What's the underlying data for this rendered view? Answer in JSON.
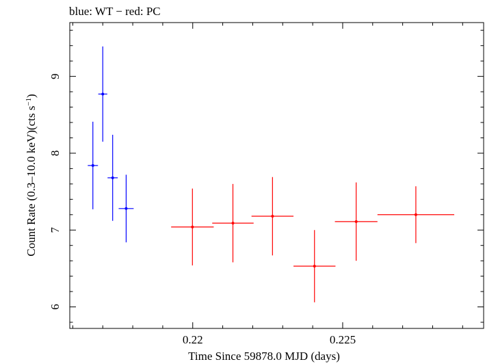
{
  "chart_data": {
    "type": "scatter",
    "title": "blue: WT − red: PC",
    "xlabel": "Time Since 59878.0 MJD (days)",
    "ylabel_main": "Count Rate (0.3–10.0 keV)(cts s",
    "ylabel_sup": "−1",
    "ylabel_end": ")",
    "xlim": [
      0.2159,
      0.2297
    ],
    "ylim": [
      5.72,
      9.7
    ],
    "x_ticks": [
      {
        "value": 0.22,
        "label": "0.22"
      },
      {
        "value": 0.225,
        "label": "0.225"
      }
    ],
    "x_minor_step": 0.001,
    "y_ticks": [
      {
        "value": 6,
        "label": "6"
      },
      {
        "value": 7,
        "label": "7"
      },
      {
        "value": 8,
        "label": "8"
      },
      {
        "value": 9,
        "label": "9"
      }
    ],
    "y_minor_step": 0.2,
    "series": [
      {
        "name": "WT",
        "color": "#0000ff",
        "points": [
          {
            "x": 0.21667,
            "xerr": 0.00017,
            "y": 7.84,
            "yerr": 0.57
          },
          {
            "x": 0.217,
            "xerr": 0.00015,
            "y": 8.77,
            "yerr": 0.62
          },
          {
            "x": 0.21733,
            "xerr": 0.00017,
            "y": 7.68,
            "yerr": 0.56
          },
          {
            "x": 0.21778,
            "xerr": 0.00025,
            "y": 7.28,
            "yerr": 0.44
          }
        ]
      },
      {
        "name": "PC",
        "color": "#ff0000",
        "points": [
          {
            "x": 0.21999,
            "xerr": 0.00071,
            "y": 7.04,
            "yerr": 0.5
          },
          {
            "x": 0.22134,
            "xerr": 0.00069,
            "y": 7.09,
            "yerr": 0.51
          },
          {
            "x": 0.22266,
            "xerr": 0.0007,
            "y": 7.18,
            "yerr": 0.51
          },
          {
            "x": 0.22406,
            "xerr": 0.0007,
            "y": 6.53,
            "yerr": 0.47
          },
          {
            "x": 0.22545,
            "xerr": 0.00071,
            "y": 7.11,
            "yerr": 0.51
          },
          {
            "x": 0.22744,
            "xerr": 0.00128,
            "y": 7.2,
            "yerr": 0.37
          }
        ]
      }
    ]
  }
}
